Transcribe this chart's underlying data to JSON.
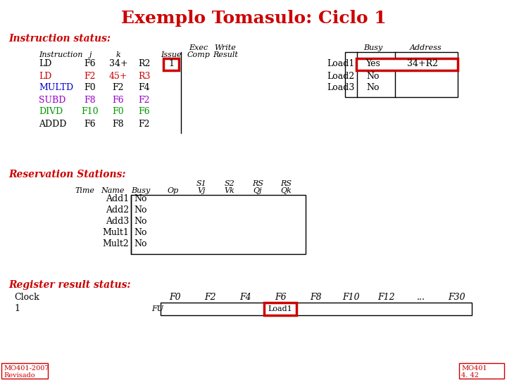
{
  "title": "Exemplo Tomasulo: Ciclo 1",
  "title_color": "#cc0000",
  "bg_color": "#ffffff",
  "instruction_status_label": "Instruction status:",
  "instructions": [
    {
      "name": "LD",
      "ncolor": "#000000",
      "j": "F6",
      "jcolor": "#000000",
      "k": "34+",
      "kcolor": "#000000",
      "reg": "R2",
      "rcolor": "#000000",
      "issue": "1"
    },
    {
      "name": "LD",
      "ncolor": "#cc0000",
      "j": "F2",
      "jcolor": "#cc0000",
      "k": "45+",
      "kcolor": "#cc0000",
      "reg": "R3",
      "rcolor": "#cc0000",
      "issue": ""
    },
    {
      "name": "MULTD",
      "ncolor": "#0000cc",
      "j": "F0",
      "jcolor": "#000000",
      "k": "F2",
      "kcolor": "#000000",
      "reg": "F4",
      "rcolor": "#000000",
      "issue": ""
    },
    {
      "name": "SUBD",
      "ncolor": "#9900cc",
      "j": "F8",
      "jcolor": "#9900cc",
      "k": "F6",
      "kcolor": "#9900cc",
      "reg": "F2",
      "rcolor": "#9900cc",
      "issue": ""
    },
    {
      "name": "DIVD",
      "ncolor": "#009900",
      "j": "F10",
      "jcolor": "#009900",
      "k": "F0",
      "kcolor": "#009900",
      "reg": "F6",
      "rcolor": "#009900",
      "issue": ""
    },
    {
      "name": "ADDD",
      "ncolor": "#000000",
      "j": "F6",
      "jcolor": "#000000",
      "k": "F8",
      "kcolor": "#000000",
      "reg": "F2",
      "rcolor": "#000000",
      "issue": ""
    }
  ],
  "load_buffers_label": [
    "Load1",
    "Load2",
    "Load3"
  ],
  "load_buffers_busy": [
    "Yes",
    "No",
    "No"
  ],
  "load_buffers_addr": [
    "34+R2",
    "",
    ""
  ],
  "rs_entries": [
    [
      "Add1",
      "No"
    ],
    [
      "Add2",
      "No"
    ],
    [
      "Add3",
      "No"
    ],
    [
      "Mult1",
      "No"
    ],
    [
      "Mult2",
      "No"
    ]
  ],
  "reg_clocks": [
    "F0",
    "F2",
    "F4",
    "F6",
    "F8",
    "F10",
    "F12",
    "...",
    "F30"
  ],
  "reg_f6_value": "Load1",
  "footer_left_line1": "MO401-2007",
  "footer_left_line2": "Revisado",
  "footer_right_line1": "MO401",
  "footer_right_line2": "4. 42"
}
